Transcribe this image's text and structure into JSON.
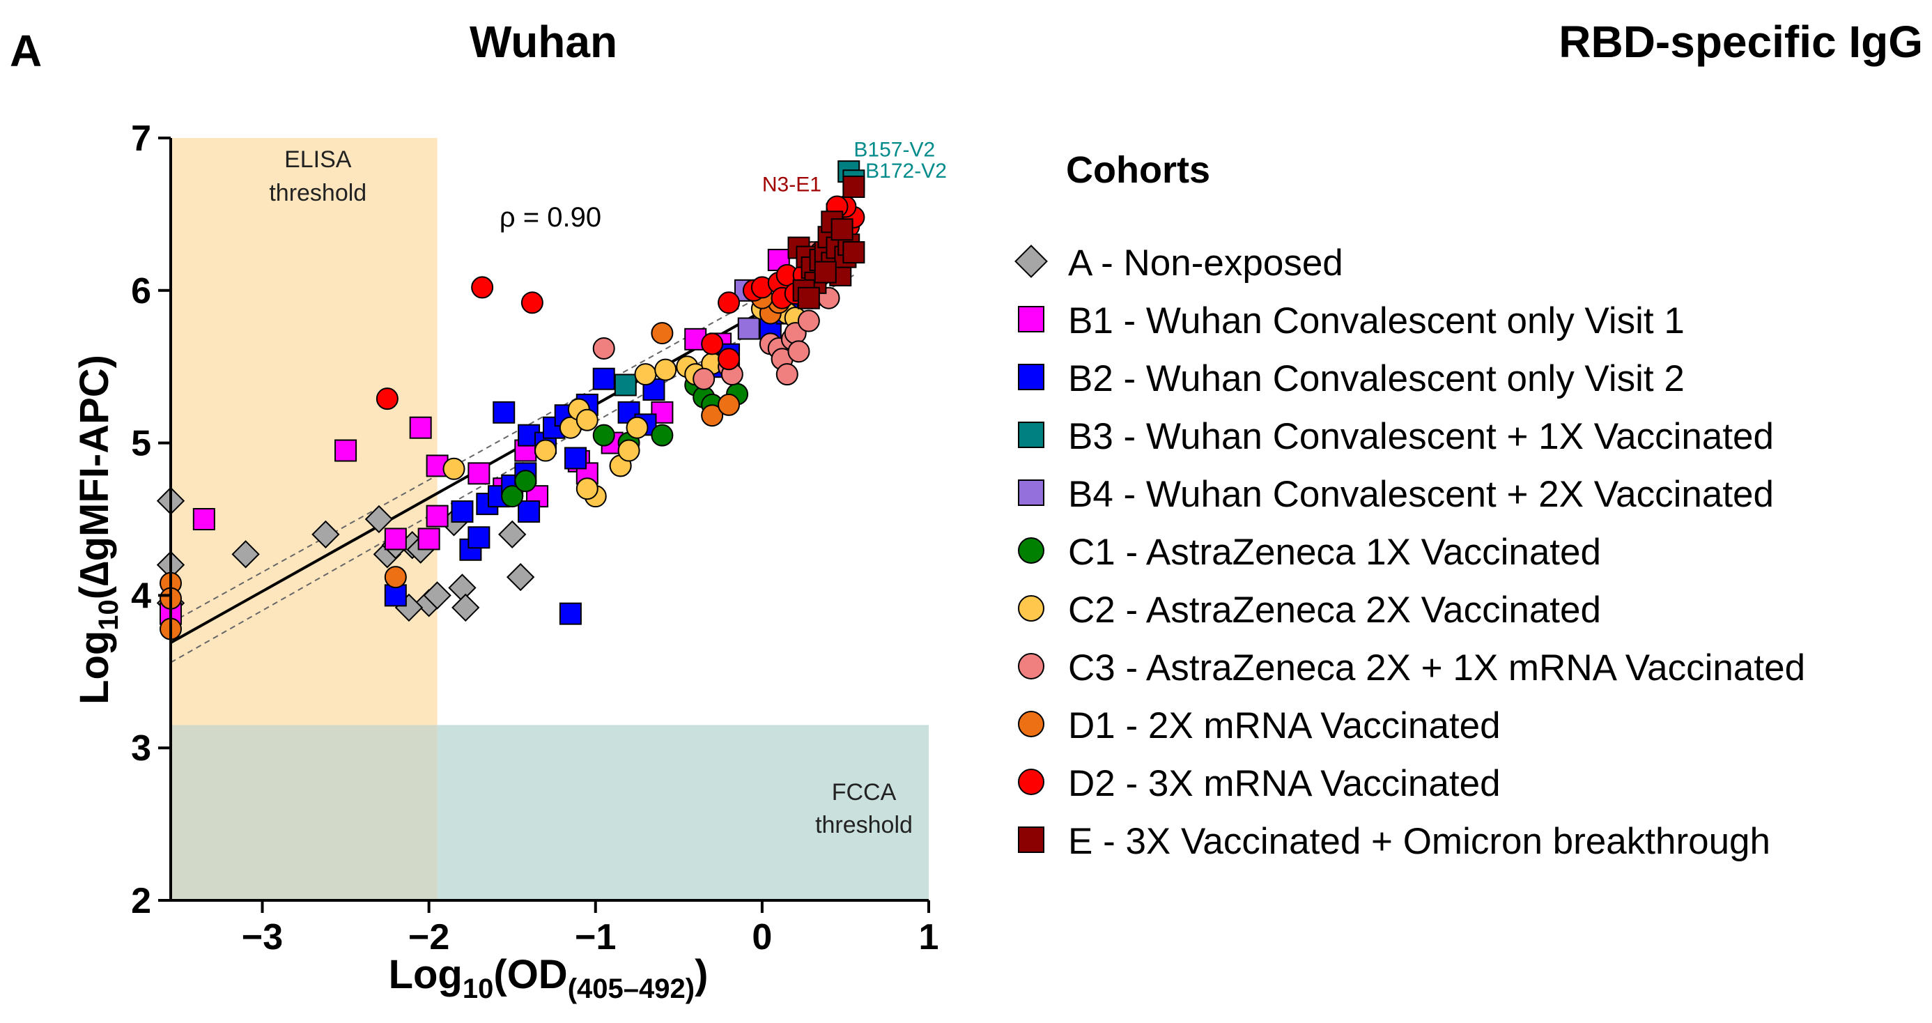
{
  "panel_letter": "A",
  "chart_data": {
    "type": "scatter",
    "title": "Wuhan",
    "subtitle": "RBD-specific IgG",
    "xlabel_main": "Log",
    "xlabel_sub": "10",
    "xlabel_rest": "(OD",
    "xlabel_sub2": "(405–492)",
    "xlabel_end": ")",
    "ylabel_main": "Log",
    "ylabel_sub": "10",
    "ylabel_rest": "(∆gMFI-APC)",
    "xlim": [
      -3.55,
      1.0
    ],
    "ylim": [
      2.0,
      7.0
    ],
    "xticks": [
      -3,
      -2,
      -1,
      0,
      1
    ],
    "xtick_labels": [
      "−3",
      "−2",
      "−1",
      "0",
      "1"
    ],
    "yticks": [
      2,
      3,
      4,
      5,
      6,
      7
    ],
    "ytick_labels": [
      "2",
      "3",
      "4",
      "5",
      "6",
      "7"
    ],
    "elisa_threshold_x": -1.95,
    "fcca_threshold_y": 3.15,
    "elisa_label_line1": "ELISA",
    "elisa_label_line2": "threshold",
    "fcca_label_line1": "FCCA",
    "fcca_label_line2": "threshold",
    "correlation_label": "ρ = 0.90",
    "regression": {
      "x0": -3.55,
      "y0": 3.69,
      "x1": 0.55,
      "y1": 6.2
    },
    "ci_upper": {
      "x0": -3.55,
      "y0": 3.82,
      "x1": 0.55,
      "y1": 6.3
    },
    "ci_lower": {
      "x0": -3.55,
      "y0": 3.56,
      "x1": 0.55,
      "y1": 6.1
    },
    "annotations": [
      {
        "text": "B157-V2",
        "x": 0.55,
        "y": 6.88,
        "color": "#008b8b"
      },
      {
        "text": "B172-V2",
        "x": 0.62,
        "y": 6.74,
        "color": "#008b8b"
      },
      {
        "text": "N3-E1",
        "x": 0.0,
        "y": 6.65,
        "color": "#a00000"
      }
    ],
    "legend_title": "Cohorts",
    "series": [
      {
        "key": "A",
        "name": "A - Non-exposed",
        "shape": "diamond",
        "color": "#a6a6a6",
        "points": [
          [
            -3.55,
            4.62
          ],
          [
            -3.55,
            4.2
          ],
          [
            -3.55,
            3.95
          ],
          [
            -3.1,
            4.27
          ],
          [
            -2.62,
            4.4
          ],
          [
            -2.3,
            4.5
          ],
          [
            -2.25,
            4.27
          ],
          [
            -2.2,
            4.33
          ],
          [
            -2.1,
            4.33
          ],
          [
            -2.05,
            4.3
          ],
          [
            -2.0,
            3.95
          ],
          [
            -1.95,
            4.0
          ],
          [
            -2.12,
            3.92
          ],
          [
            -1.85,
            4.48
          ],
          [
            -1.8,
            4.05
          ],
          [
            -1.78,
            3.92
          ],
          [
            -1.5,
            4.4
          ],
          [
            -1.45,
            4.12
          ]
        ]
      },
      {
        "key": "B1",
        "name": "B1 - Wuhan Convalescent only Visit 1",
        "shape": "square",
        "color": "#ff00ff",
        "points": [
          [
            -3.55,
            3.88
          ],
          [
            -3.35,
            4.5
          ],
          [
            -2.5,
            4.95
          ],
          [
            -2.2,
            4.37
          ],
          [
            -2.05,
            5.1
          ],
          [
            -2.0,
            4.37
          ],
          [
            -1.95,
            4.85
          ],
          [
            -1.95,
            4.52
          ],
          [
            -1.7,
            4.8
          ],
          [
            -1.55,
            4.7
          ],
          [
            -1.42,
            4.95
          ],
          [
            -1.35,
            4.65
          ],
          [
            -1.1,
            4.88
          ],
          [
            -1.05,
            4.8
          ],
          [
            -0.9,
            5.0
          ],
          [
            -0.6,
            5.2
          ],
          [
            -0.4,
            5.68
          ],
          [
            -0.25,
            5.65
          ],
          [
            0.1,
            6.2
          ]
        ]
      },
      {
        "key": "B2",
        "name": "B2 - Wuhan Convalescent only Visit 2",
        "shape": "square",
        "color": "#0000ff",
        "points": [
          [
            -2.2,
            4.0
          ],
          [
            -1.75,
            4.3
          ],
          [
            -1.8,
            4.55
          ],
          [
            -1.7,
            4.38
          ],
          [
            -1.65,
            4.6
          ],
          [
            -1.58,
            4.65
          ],
          [
            -1.5,
            4.72
          ],
          [
            -1.4,
            4.55
          ],
          [
            -1.42,
            4.8
          ],
          [
            -1.55,
            5.2
          ],
          [
            -1.4,
            5.05
          ],
          [
            -1.3,
            5.0
          ],
          [
            -1.25,
            5.1
          ],
          [
            -1.18,
            5.18
          ],
          [
            -1.12,
            4.9
          ],
          [
            -1.05,
            5.25
          ],
          [
            -0.95,
            5.42
          ],
          [
            -0.8,
            5.2
          ],
          [
            -0.7,
            5.12
          ],
          [
            -0.65,
            5.35
          ],
          [
            -1.15,
            3.88
          ],
          [
            -0.25,
            5.5
          ],
          [
            -0.2,
            5.58
          ],
          [
            0.05,
            5.75
          ],
          [
            0.15,
            5.85
          ]
        ]
      },
      {
        "key": "B3",
        "name": "B3 - Wuhan Convalescent + 1X Vaccinated",
        "shape": "square",
        "color": "#008080",
        "points": [
          [
            -0.82,
            5.38
          ],
          [
            0.45,
            6.5
          ],
          [
            0.52,
            6.78
          ],
          [
            0.55,
            6.72
          ]
        ]
      },
      {
        "key": "B4",
        "name": "B4 - Wuhan Convalescent + 2X Vaccinated",
        "shape": "square",
        "color": "#9370db",
        "points": [
          [
            -0.1,
            6.0
          ],
          [
            -0.08,
            5.75
          ],
          [
            0.25,
            6.05
          ]
        ]
      },
      {
        "key": "C1",
        "name": "C1 - AstraZeneca 1X Vaccinated",
        "shape": "circle",
        "color": "#008000",
        "points": [
          [
            -1.5,
            4.65
          ],
          [
            -1.42,
            4.75
          ],
          [
            -0.95,
            5.05
          ],
          [
            -0.8,
            5.0
          ],
          [
            -0.6,
            5.05
          ],
          [
            -0.4,
            5.38
          ],
          [
            -0.35,
            5.3
          ],
          [
            -0.3,
            5.25
          ],
          [
            -0.15,
            5.32
          ],
          [
            -0.85,
            4.85
          ]
        ]
      },
      {
        "key": "C2",
        "name": "C2 - AstraZeneca 2X Vaccinated",
        "shape": "circle",
        "color": "#ffc84d",
        "points": [
          [
            -1.85,
            4.83
          ],
          [
            -1.3,
            4.95
          ],
          [
            -1.15,
            5.1
          ],
          [
            -1.1,
            5.22
          ],
          [
            -1.05,
            5.15
          ],
          [
            -1.0,
            4.65
          ],
          [
            -1.05,
            4.7
          ],
          [
            -0.85,
            4.85
          ],
          [
            -0.8,
            4.95
          ],
          [
            -0.75,
            5.1
          ],
          [
            -0.7,
            5.45
          ],
          [
            -0.58,
            5.48
          ],
          [
            -0.45,
            5.5
          ],
          [
            -0.4,
            5.45
          ],
          [
            -0.3,
            5.52
          ],
          [
            0.0,
            5.88
          ],
          [
            0.05,
            5.9
          ],
          [
            0.15,
            5.85
          ],
          [
            0.2,
            5.82
          ],
          [
            0.3,
            5.95
          ]
        ]
      },
      {
        "key": "C3",
        "name": "C3 - AstraZeneca 2X + 1X mRNA Vaccinated",
        "shape": "circle",
        "color": "#f08080",
        "points": [
          [
            -0.95,
            5.62
          ],
          [
            -0.35,
            5.42
          ],
          [
            -0.2,
            5.5
          ],
          [
            -0.18,
            5.45
          ],
          [
            0.05,
            5.65
          ],
          [
            0.1,
            5.62
          ],
          [
            0.12,
            5.55
          ],
          [
            0.15,
            5.45
          ],
          [
            0.18,
            5.68
          ],
          [
            0.2,
            5.72
          ],
          [
            0.22,
            5.6
          ],
          [
            0.28,
            5.8
          ],
          [
            0.35,
            6.1
          ],
          [
            0.4,
            5.95
          ],
          [
            0.3,
            6.25
          ],
          [
            0.45,
            6.45
          ]
        ]
      },
      {
        "key": "D1",
        "name": "D1 - 2X mRNA Vaccinated",
        "shape": "circle",
        "color": "#ed7014",
        "points": [
          [
            -3.55,
            4.08
          ],
          [
            -3.55,
            3.98
          ],
          [
            -3.55,
            3.78
          ],
          [
            -2.2,
            4.12
          ],
          [
            -0.6,
            5.72
          ],
          [
            -0.3,
            5.18
          ],
          [
            -0.2,
            5.25
          ],
          [
            0.05,
            5.85
          ],
          [
            0.1,
            5.92
          ],
          [
            0.0,
            5.95
          ]
        ]
      },
      {
        "key": "D2",
        "name": "D2 - 3X mRNA Vaccinated",
        "shape": "circle",
        "color": "#ff0000",
        "points": [
          [
            -2.25,
            5.29
          ],
          [
            -1.68,
            6.02
          ],
          [
            -1.38,
            5.92
          ],
          [
            -0.2,
            5.55
          ],
          [
            -0.3,
            5.65
          ],
          [
            -0.2,
            5.92
          ],
          [
            -0.05,
            6.0
          ],
          [
            0.0,
            6.02
          ],
          [
            0.1,
            6.05
          ],
          [
            0.12,
            5.95
          ],
          [
            0.15,
            6.1
          ],
          [
            0.2,
            5.98
          ],
          [
            0.25,
            6.1
          ],
          [
            0.3,
            6.15
          ],
          [
            0.35,
            6.25
          ],
          [
            0.4,
            6.3
          ],
          [
            0.45,
            6.32
          ],
          [
            0.48,
            6.38
          ],
          [
            0.52,
            6.42
          ],
          [
            0.55,
            6.48
          ],
          [
            0.5,
            6.55
          ],
          [
            0.45,
            6.55
          ]
        ]
      },
      {
        "key": "E",
        "name": "E - 3X Vaccinated + Omicron breakthrough",
        "shape": "square",
        "color": "#8b0000",
        "points": [
          [
            0.22,
            6.28
          ],
          [
            0.27,
            6.22
          ],
          [
            0.3,
            6.15
          ],
          [
            0.32,
            6.05
          ],
          [
            0.35,
            6.2
          ],
          [
            0.38,
            6.25
          ],
          [
            0.4,
            6.35
          ],
          [
            0.42,
            6.18
          ],
          [
            0.45,
            6.28
          ],
          [
            0.47,
            6.1
          ],
          [
            0.5,
            6.22
          ],
          [
            0.52,
            6.3
          ],
          [
            0.55,
            6.25
          ],
          [
            0.42,
            6.45
          ],
          [
            0.48,
            6.4
          ],
          [
            0.55,
            6.68
          ],
          [
            0.38,
            6.12
          ],
          [
            0.25,
            6.0
          ],
          [
            0.28,
            5.95
          ]
        ]
      }
    ]
  }
}
